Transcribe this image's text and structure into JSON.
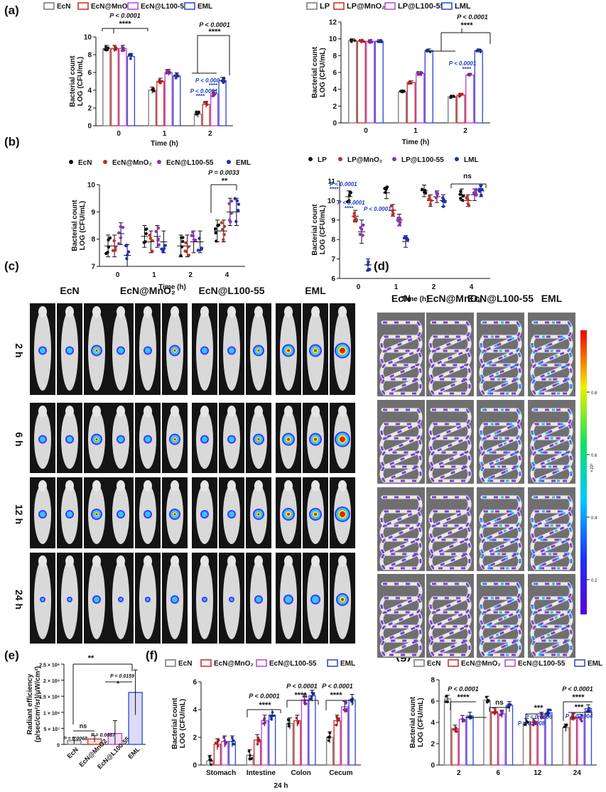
{
  "panel_labels": [
    "(a)",
    "(b)",
    "(c)",
    "(d)",
    "(e)",
    "(f)",
    "(g)"
  ],
  "colors": {
    "ecn": "#7f7f7f",
    "ecn_mno2": "#d0342c",
    "ecn_l100": "#b84fd6",
    "eml": "#3a4fd0",
    "pval_blue": "#1f3fbf"
  },
  "chart_data": [
    {
      "id": "a_left",
      "type": "bar",
      "categories": [
        "0",
        "1",
        "2"
      ],
      "series": [
        {
          "name": "EcN",
          "values": [
            8.7,
            4.0,
            1.3
          ]
        },
        {
          "name": "EcN@MnO2",
          "values": [
            8.7,
            5.0,
            2.4
          ]
        },
        {
          "name": "EcN@L100-55",
          "values": [
            8.7,
            6.0,
            3.6
          ]
        },
        {
          "name": "EML",
          "values": [
            7.8,
            5.6,
            5.1
          ]
        }
      ],
      "xlabel": "Time (h)",
      "ylabel": [
        "Bacterial count",
        "LOG (CFU/mL)"
      ],
      "ylim": [
        0,
        10
      ],
      "yticks": [
        "0",
        "2",
        "4",
        "6",
        "8",
        "10"
      ],
      "annotations": [
        "P < 0.0001",
        "****",
        "P < 0.0001",
        "****",
        "P < 0.000",
        "****",
        "P < 0.0001",
        "****"
      ]
    },
    {
      "id": "a_right",
      "type": "bar",
      "categories": [
        "0",
        "1",
        "2"
      ],
      "series": [
        {
          "name": "LP",
          "values": [
            9.8,
            3.7,
            3.1
          ]
        },
        {
          "name": "LP@MnO2",
          "values": [
            9.7,
            4.8,
            3.3
          ]
        },
        {
          "name": "LP@L100-55",
          "values": [
            9.7,
            5.9,
            5.7
          ]
        },
        {
          "name": "LML",
          "values": [
            9.7,
            8.6,
            8.6
          ]
        }
      ],
      "xlabel": "Time (h)",
      "ylabel": [
        "Bacterial count",
        "LOG (CFU/mL)"
      ],
      "ylim": [
        0,
        12
      ],
      "yticks": [
        "0",
        "2",
        "4",
        "6",
        "8",
        "10",
        "12"
      ],
      "annotations": [
        "P < 0.0001",
        "****",
        "P < 0.0001",
        "****"
      ]
    },
    {
      "id": "b_left",
      "type": "scatter",
      "categories": [
        "0",
        "1",
        "2",
        "4"
      ],
      "series": [
        {
          "name": "EcN",
          "values": [
            7.75,
            8.1,
            7.75,
            8.3
          ]
        },
        {
          "name": "EcN@MnO2",
          "values": [
            7.75,
            7.9,
            7.75,
            8.3
          ]
        },
        {
          "name": "EcN@L100-55",
          "values": [
            8.2,
            8.1,
            7.9,
            9.0
          ]
        },
        {
          "name": "EML",
          "values": [
            7.4,
            7.9,
            7.9,
            9.0
          ]
        }
      ],
      "xlabel": "Time (h)",
      "ylabel": [
        "Bacterial count",
        "LOG (CFU/mL)"
      ],
      "ylim": [
        7,
        10
      ],
      "yticks": [
        "7",
        "8",
        "9",
        "10"
      ],
      "annotations": [
        "P = 0.0033",
        "**"
      ]
    },
    {
      "id": "b_right",
      "type": "scatter",
      "categories": [
        "0",
        "1",
        "2",
        "4"
      ],
      "series": [
        {
          "name": "LP",
          "values": [
            10.2,
            10.4,
            10.5,
            10.3
          ]
        },
        {
          "name": "LP@MnO2",
          "values": [
            9.2,
            9.5,
            10.0,
            10.0
          ]
        },
        {
          "name": "LP@L100-55",
          "values": [
            8.4,
            9.0,
            10.2,
            10.3
          ]
        },
        {
          "name": "LML",
          "values": [
            6.7,
            7.9,
            10.0,
            10.5
          ]
        }
      ],
      "xlabel": "Time (h)",
      "ylabel": [
        "Bacterial count",
        "LOG (CFU/mL)"
      ],
      "ylim": [
        6,
        11
      ],
      "yticks": [
        "6",
        "7",
        "8",
        "9",
        "10",
        "11"
      ],
      "annotations": [
        "P < 0.0001",
        "****",
        "P < 0.0001",
        "****",
        "P < 0.0001",
        "ns"
      ]
    },
    {
      "id": "e",
      "type": "bar",
      "categories": [
        "EcN",
        "EcN@MnO2",
        "EcN@L100-55",
        "EML"
      ],
      "values": [
        12000000,
        17000000,
        34000000,
        162000000
      ],
      "ylabel": [
        "Radiant efficiency",
        "(p/sec/cm²/sr)/μW/cm²)"
      ],
      "ylim": [
        0,
        250000000
      ],
      "yticks": [
        "0",
        "5 × 10⁷",
        "1 × 10⁸",
        "1.5 × 10⁸",
        "2 × 10⁸",
        "2.5 × 10⁸"
      ],
      "annotations": [
        "ns",
        "P = 0.0068",
        "P = 0.0087",
        "P = 0.0159",
        "*",
        "**"
      ]
    },
    {
      "id": "f",
      "type": "bar",
      "categories": [
        "Stomach",
        "Intestine",
        "Colon",
        "Cecum"
      ],
      "series": [
        {
          "name": "EcN",
          "values": [
            0.3,
            0.7,
            3.0,
            2.0
          ]
        },
        {
          "name": "EcN@MnO2",
          "values": [
            1.5,
            1.8,
            3.2,
            3.2
          ]
        },
        {
          "name": "EcN@L100-55",
          "values": [
            1.7,
            3.2,
            4.7,
            4.2
          ]
        },
        {
          "name": "EML",
          "values": [
            1.7,
            3.6,
            5.0,
            4.7
          ]
        }
      ],
      "xlabel": "24 h",
      "ylabel": [
        "Bacterial count",
        "LOG (CFU/mL)"
      ],
      "ylim": [
        0,
        6
      ],
      "yticks": [
        "0",
        "2",
        "4",
        "6"
      ],
      "annotations": [
        "P < 0.0001",
        "****",
        "P < 0.0001",
        "****",
        "P < 0.0001",
        "****"
      ]
    },
    {
      "id": "g",
      "type": "bar",
      "categories": [
        "2",
        "6",
        "12",
        "24"
      ],
      "series": [
        {
          "name": "EcN",
          "values": [
            6.2,
            6.1,
            4.0,
            3.5
          ]
        },
        {
          "name": "EcN@MnO2",
          "values": [
            3.4,
            5.0,
            4.0,
            4.5
          ]
        },
        {
          "name": "EcN@L100-55",
          "values": [
            4.3,
            4.8,
            4.6,
            4.4
          ]
        },
        {
          "name": "EML",
          "values": [
            4.6,
            5.6,
            4.9,
            5.3
          ]
        }
      ],
      "xlabel": "",
      "ylabel": [
        "Bacterial count",
        "LOG (CFU/mL)"
      ],
      "ylim": [
        0,
        8
      ],
      "yticks": [
        "0",
        "2",
        "4",
        "6",
        "8"
      ],
      "annotations": [
        "P < 0.0001",
        "****",
        "ns",
        "***",
        "P = 0.0006",
        "P = 0.0008",
        "P < 0.0001",
        "****",
        "***",
        "P = 0.0004"
      ]
    }
  ],
  "legends": {
    "ecn_set": [
      "EcN",
      "EcN@MnO₂",
      "EcN@L100-55",
      "EML"
    ],
    "lp_set": [
      "LP",
      "LP@MnO₂",
      "LP@L100-55",
      "LML"
    ]
  },
  "imaging": {
    "c_groups": [
      "EcN",
      "EcN@MnO₂",
      "EcN@L100-55",
      "EML"
    ],
    "c_times": [
      "2 h",
      "6 h",
      "12 h",
      "24 h"
    ],
    "d_groups": [
      "EcN",
      "EcN@MnO₂",
      "EcN@L100-55",
      "EML"
    ],
    "colorbar_ticks": [
      "0.8",
      "0.6",
      "0.4",
      "0.2"
    ],
    "colorbar_unit": "×10⁸"
  }
}
